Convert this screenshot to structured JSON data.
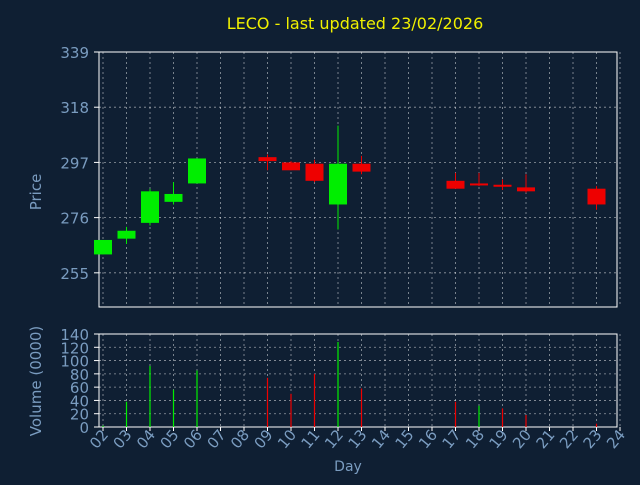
{
  "colors": {
    "background": "#0f1f33",
    "title": "#f0f000",
    "axis_text": "#7a9cc0",
    "frame": "#ffffff",
    "grid": "#ffffff",
    "up": "#00ee00",
    "down": "#ee0000"
  },
  "chart_data": [
    {
      "type": "candlestick",
      "title": "LECO - last updated 23/02/2026",
      "ylabel": "Price",
      "ylim": [
        242,
        339
      ],
      "yticks": [
        255,
        276,
        297,
        318,
        339
      ],
      "ytick_labels": [
        "255",
        "276",
        "297",
        "318",
        "339"
      ],
      "grid": true,
      "x": [
        "02",
        "03",
        "04",
        "05",
        "06",
        "07",
        "08",
        "09",
        "10",
        "11",
        "12",
        "13",
        "14",
        "15",
        "16",
        "17",
        "18",
        "19",
        "20",
        "21",
        "22",
        "23",
        "24"
      ],
      "candles": [
        {
          "day": "02",
          "open": 262,
          "close": 267.5,
          "high": 267.5,
          "low": 262
        },
        {
          "day": "03",
          "open": 268,
          "close": 271,
          "high": 272.5,
          "low": 266
        },
        {
          "day": "04",
          "open": 274,
          "close": 286,
          "high": 287,
          "low": 273
        },
        {
          "day": "05",
          "open": 282,
          "close": 285,
          "high": 289.5,
          "low": 281
        },
        {
          "day": "06",
          "open": 289,
          "close": 298.5,
          "high": 298.5,
          "low": 289
        },
        {
          "day": "09",
          "open": 299,
          "close": 297.5,
          "high": 300,
          "low": 294
        },
        {
          "day": "10",
          "open": 297,
          "close": 294,
          "high": 297.5,
          "low": 294
        },
        {
          "day": "11",
          "open": 296.5,
          "close": 290,
          "high": 298,
          "low": 289.5
        },
        {
          "day": "12",
          "open": 281,
          "close": 296.5,
          "high": 311,
          "low": 271.5
        },
        {
          "day": "13",
          "open": 296.5,
          "close": 293.5,
          "high": 299.5,
          "low": 292.5
        },
        {
          "day": "17",
          "open": 290,
          "close": 287,
          "high": 293,
          "low": 287
        },
        {
          "day": "18",
          "open": 289,
          "close": 288.5,
          "high": 293,
          "low": 288
        },
        {
          "day": "19",
          "open": 288.5,
          "close": 288,
          "high": 290.5,
          "low": 286.5
        },
        {
          "day": "20",
          "open": 287.5,
          "close": 286,
          "high": 292.5,
          "low": 285.5
        },
        {
          "day": "23",
          "open": 287,
          "close": 281,
          "high": 288,
          "low": 279
        }
      ]
    },
    {
      "type": "bar",
      "ylabel": "Volume (0000)",
      "xlabel": "Day",
      "ylim": [
        0,
        140
      ],
      "yticks": [
        0,
        20,
        40,
        60,
        80,
        100,
        120,
        140
      ],
      "ytick_labels": [
        "0",
        "20",
        "40",
        "60",
        "80",
        "100",
        "120",
        "140"
      ],
      "grid": true,
      "x": [
        "02",
        "03",
        "04",
        "05",
        "06",
        "07",
        "08",
        "09",
        "10",
        "11",
        "12",
        "13",
        "14",
        "15",
        "16",
        "17",
        "18",
        "19",
        "20",
        "21",
        "22",
        "23",
        "24"
      ],
      "bars": [
        {
          "day": "02",
          "value": 2,
          "direction": "up"
        },
        {
          "day": "03",
          "value": 38,
          "direction": "up"
        },
        {
          "day": "04",
          "value": 92,
          "direction": "up"
        },
        {
          "day": "05",
          "value": 56,
          "direction": "up"
        },
        {
          "day": "06",
          "value": 85,
          "direction": "up"
        },
        {
          "day": "09",
          "value": 74,
          "direction": "down"
        },
        {
          "day": "10",
          "value": 50,
          "direction": "down"
        },
        {
          "day": "11",
          "value": 80,
          "direction": "down"
        },
        {
          "day": "12",
          "value": 128,
          "direction": "up"
        },
        {
          "day": "13",
          "value": 58,
          "direction": "down"
        },
        {
          "day": "17",
          "value": 38,
          "direction": "down"
        },
        {
          "day": "18",
          "value": 32,
          "direction": "up"
        },
        {
          "day": "19",
          "value": 28,
          "direction": "down"
        },
        {
          "day": "20",
          "value": 18,
          "direction": "down"
        },
        {
          "day": "23",
          "value": 5,
          "direction": "down"
        }
      ]
    }
  ]
}
